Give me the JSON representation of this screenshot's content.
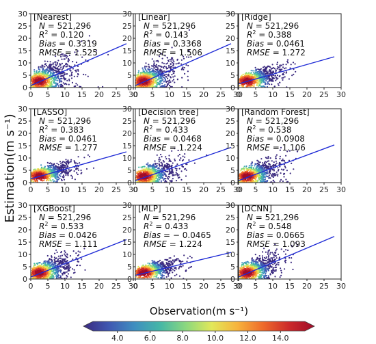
{
  "figure": {
    "ylabel": "Estimation(m s⁻¹)",
    "xlabel": "Observation(m s⁻¹)"
  },
  "colorbar": {
    "colors": [
      "#3b2a7f",
      "#3f58b2",
      "#3f8fc0",
      "#46b7a6",
      "#8cd87e",
      "#e2e85a",
      "#f7b33c",
      "#ee6a2a",
      "#cc2a2a",
      "#a00d2a"
    ],
    "ticks": [
      "4.0",
      "6.0",
      "8.0",
      "10.0",
      "12.0",
      "14.0"
    ],
    "tick_values": [
      4,
      6,
      8,
      10,
      12,
      14
    ],
    "range": [
      2.5,
      15.5
    ]
  },
  "line_color": "#1f2bd6",
  "chart_data": [
    {
      "type": "scatter",
      "title": "[Nearest]",
      "n": "521,296",
      "r2": "0.120",
      "bias": "0.3319",
      "rmse": "1.525",
      "fit_line": [
        [
          0,
          0.8
        ],
        [
          28,
          17.8
        ]
      ],
      "spread": 4.2,
      "xlim": [
        0,
        30
      ],
      "ylim": [
        0,
        30
      ],
      "xticks": [
        "0",
        "5",
        "10",
        "15",
        "20",
        "25",
        "30"
      ],
      "yticks": [
        "0",
        "5",
        "10",
        "15",
        "20",
        "25",
        "30"
      ]
    },
    {
      "type": "scatter",
      "title": "[Linear]",
      "n": "521,296",
      "r2": "0.143",
      "bias": "0.3368",
      "rmse": "1.506",
      "fit_line": [
        [
          0,
          0.8
        ],
        [
          28,
          17.8
        ]
      ],
      "spread": 4.0,
      "xlim": [
        0,
        30
      ],
      "ylim": [
        0,
        30
      ],
      "xticks": [
        "0",
        "5",
        "10",
        "15",
        "20",
        "25",
        "30"
      ],
      "yticks": [
        "0",
        "5",
        "10",
        "15",
        "20",
        "25",
        "30"
      ]
    },
    {
      "type": "scatter",
      "title": "[Ridge]",
      "n": "521,296",
      "r2": "0.388",
      "bias": "0.0461",
      "rmse": "1.272",
      "fit_line": [
        [
          0,
          1.5
        ],
        [
          28,
          12.5
        ]
      ],
      "spread": 2.2,
      "xlim": [
        0,
        30
      ],
      "ylim": [
        0,
        30
      ],
      "xticks": [
        "0",
        "5",
        "10",
        "15",
        "20",
        "25",
        "30"
      ],
      "yticks": [
        "0",
        "5",
        "10",
        "15",
        "20",
        "25",
        "30"
      ]
    },
    {
      "type": "scatter",
      "title": "[LASSO]",
      "n": "521,296",
      "r2": "0.383",
      "bias": "0.0461",
      "rmse": "1.277",
      "fit_line": [
        [
          0,
          1.5
        ],
        [
          28,
          12.5
        ]
      ],
      "spread": 2.2,
      "xlim": [
        0,
        30
      ],
      "ylim": [
        0,
        30
      ],
      "xticks": [
        "0",
        "5",
        "10",
        "15",
        "20",
        "25",
        "30"
      ],
      "yticks": [
        "0",
        "5",
        "10",
        "15",
        "20",
        "25",
        "30"
      ]
    },
    {
      "type": "scatter",
      "title": "[Decision tree]",
      "n": "521,296",
      "r2": "0.433",
      "bias": "0.0468",
      "rmse": "1.224",
      "fit_line": [
        [
          0,
          0.8
        ],
        [
          28,
          14.3
        ]
      ],
      "spread": 3.0,
      "xlim": [
        0,
        30
      ],
      "ylim": [
        0,
        30
      ],
      "xticks": [
        "0",
        "5",
        "10",
        "15",
        "20",
        "25",
        "30"
      ],
      "yticks": [
        "0",
        "5",
        "10",
        "15",
        "20",
        "25",
        "30"
      ]
    },
    {
      "type": "scatter",
      "title": "[Random Forest]",
      "n": "521,296",
      "r2": "0.538",
      "bias": "0.0908",
      "rmse": "1.106",
      "fit_line": [
        [
          0,
          0.8
        ],
        [
          28,
          15.3
        ]
      ],
      "spread": 3.0,
      "xlim": [
        0,
        30
      ],
      "ylim": [
        0,
        30
      ],
      "xticks": [
        "0",
        "5",
        "10",
        "15",
        "20",
        "25",
        "30"
      ],
      "yticks": [
        "0",
        "5",
        "10",
        "15",
        "20",
        "25",
        "30"
      ]
    },
    {
      "type": "scatter",
      "title": "[XGBoost]",
      "n": "521,296",
      "r2": "0.533",
      "bias": "0.0426",
      "rmse": "1.111",
      "fit_line": [
        [
          0,
          0.8
        ],
        [
          28,
          16.0
        ]
      ],
      "spread": 3.0,
      "xlim": [
        0,
        30
      ],
      "ylim": [
        0,
        30
      ],
      "xticks": [
        "0",
        "5",
        "10",
        "15",
        "20",
        "25",
        "30"
      ],
      "yticks": [
        "0",
        "5",
        "10",
        "15",
        "20",
        "25",
        "30"
      ]
    },
    {
      "type": "scatter",
      "title": "[MLP]",
      "n": "521,296",
      "r2": "0.433",
      "bias": "− 0.0465",
      "rmse": "1.224",
      "fit_line": [
        [
          0,
          1.5
        ],
        [
          28,
          10.8
        ]
      ],
      "spread": 2.0,
      "xlim": [
        0,
        30
      ],
      "ylim": [
        0,
        30
      ],
      "xticks": [
        "0",
        "5",
        "10",
        "15",
        "20",
        "25",
        "30"
      ],
      "yticks": [
        "0",
        "5",
        "10",
        "15",
        "20",
        "25",
        "30"
      ]
    },
    {
      "type": "scatter",
      "title": "[DCNN]",
      "n": "521,296",
      "r2": "0.548",
      "bias": "0.0665",
      "rmse": "1.093",
      "fit_line": [
        [
          0,
          0.8
        ],
        [
          28,
          17.3
        ]
      ],
      "spread": 3.2,
      "xlim": [
        0,
        30
      ],
      "ylim": [
        0,
        30
      ],
      "xticks": [
        "0",
        "5",
        "10",
        "15",
        "20",
        "25",
        "30"
      ],
      "yticks": [
        "0",
        "5",
        "10",
        "15",
        "20",
        "25",
        "30"
      ]
    }
  ]
}
